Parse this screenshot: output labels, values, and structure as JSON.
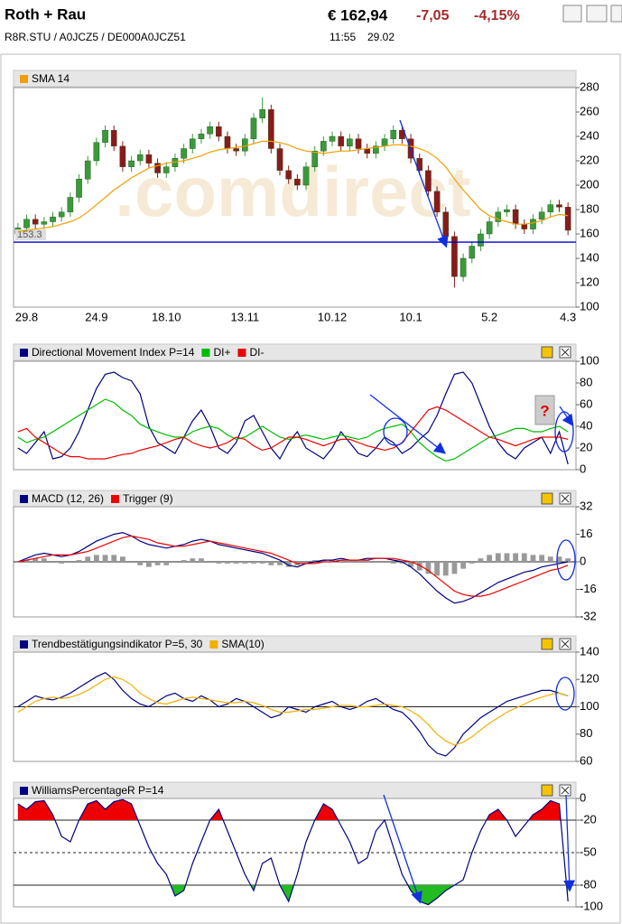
{
  "header": {
    "title": "Roth + Rau",
    "ids": "R8R.STU / A0JCZ5 / DE000A0JCZ51",
    "price": "€ 162,94",
    "change": "-7,05",
    "change_pct": "-4,15%",
    "time": "11:55",
    "date": "29.02"
  },
  "chart_data": [
    {
      "type": "candlestick",
      "watermark": ".comdirect",
      "categories": [
        null,
        "29.8",
        null,
        null,
        null,
        null,
        null,
        null,
        null,
        "24.9",
        null,
        null,
        null,
        null,
        null,
        null,
        null,
        "18.10",
        null,
        null,
        null,
        null,
        null,
        null,
        null,
        null,
        "13.11",
        null,
        null,
        null,
        null,
        null,
        null,
        null,
        null,
        null,
        "10.12",
        null,
        null,
        null,
        null,
        null,
        null,
        null,
        null,
        "10.1",
        null,
        null,
        null,
        null,
        null,
        null,
        null,
        null,
        "5.2",
        null,
        null,
        null,
        null,
        null,
        null,
        null,
        null,
        "4.3"
      ],
      "open": [
        160,
        165,
        172,
        168,
        170,
        174,
        178,
        190,
        205,
        220,
        235,
        245,
        232,
        215,
        220,
        225,
        218,
        210,
        215,
        222,
        230,
        238,
        242,
        248,
        240,
        230,
        228,
        238,
        255,
        262,
        230,
        212,
        205,
        200,
        215,
        228,
        236,
        240,
        232,
        238,
        230,
        226,
        232,
        238,
        245,
        238,
        222,
        212,
        195,
        178,
        158,
        125,
        140,
        150,
        160,
        170,
        178,
        180,
        168,
        164,
        172,
        178,
        184,
        182
      ],
      "high": [
        169,
        176,
        176,
        174,
        178,
        182,
        194,
        209,
        224,
        239,
        249,
        249,
        236,
        224,
        229,
        229,
        222,
        219,
        226,
        234,
        242,
        246,
        252,
        252,
        244,
        234,
        242,
        259,
        272,
        266,
        234,
        216,
        209,
        219,
        232,
        240,
        244,
        244,
        242,
        242,
        234,
        236,
        242,
        249,
        249,
        242,
        226,
        216,
        199,
        182,
        162,
        144,
        154,
        164,
        174,
        182,
        184,
        184,
        172,
        176,
        182,
        188,
        188,
        186
      ],
      "low": [
        156,
        161,
        164,
        164,
        166,
        170,
        174,
        186,
        201,
        216,
        231,
        228,
        211,
        211,
        216,
        214,
        206,
        206,
        211,
        218,
        226,
        234,
        238,
        236,
        226,
        224,
        224,
        234,
        251,
        226,
        208,
        201,
        196,
        196,
        211,
        224,
        232,
        228,
        228,
        226,
        222,
        222,
        228,
        234,
        234,
        218,
        208,
        191,
        174,
        154,
        116,
        121,
        136,
        146,
        156,
        166,
        174,
        164,
        160,
        160,
        168,
        174,
        178,
        159
      ],
      "close": [
        165,
        172,
        168,
        170,
        174,
        178,
        190,
        205,
        220,
        235,
        245,
        232,
        215,
        220,
        225,
        218,
        210,
        215,
        222,
        230,
        238,
        242,
        248,
        240,
        230,
        228,
        238,
        255,
        262,
        230,
        212,
        205,
        200,
        215,
        228,
        236,
        240,
        232,
        238,
        230,
        226,
        232,
        238,
        245,
        238,
        222,
        212,
        195,
        178,
        158,
        125,
        140,
        150,
        160,
        170,
        178,
        180,
        168,
        164,
        172,
        178,
        184,
        182,
        163
      ],
      "up_color": "#3a9a3a",
      "down_color": "#8b1a1a",
      "series": [
        {
          "name": "SMA 14",
          "color": "#f0a000",
          "values": [
            162,
            163,
            164,
            165,
            166,
            168,
            170,
            173,
            178,
            184,
            190,
            196,
            201,
            206,
            210,
            214,
            216,
            218,
            219,
            220,
            222,
            224,
            227,
            229,
            230,
            231,
            232,
            234,
            236,
            236,
            235,
            233,
            230,
            228,
            227,
            226,
            227,
            228,
            228,
            229,
            230,
            231,
            232,
            233,
            233,
            232,
            230,
            227,
            222,
            215,
            205,
            196,
            188,
            180,
            175,
            172,
            170,
            168,
            168,
            169,
            171,
            174,
            176,
            175
          ]
        }
      ],
      "reference_line": {
        "value": 153.3,
        "label": "153.3",
        "color": "#0000cc"
      },
      "ylim": [
        100,
        280
      ],
      "yticks": [
        100,
        120,
        140,
        160,
        180,
        200,
        220,
        240,
        260,
        280
      ]
    },
    {
      "type": "line",
      "annotation": "?",
      "series": [
        {
          "name": "Directional Movement Index P=14",
          "color": "#000080",
          "values": [
            20,
            15,
            25,
            35,
            10,
            12,
            20,
            35,
            55,
            75,
            88,
            90,
            85,
            82,
            70,
            40,
            25,
            20,
            15,
            30,
            45,
            55,
            40,
            20,
            15,
            25,
            45,
            50,
            35,
            20,
            10,
            25,
            35,
            20,
            15,
            10,
            20,
            35,
            25,
            15,
            12,
            20,
            30,
            25,
            15,
            20,
            28,
            35,
            50,
            70,
            88,
            90,
            80,
            60,
            40,
            25,
            15,
            10,
            20,
            25,
            30,
            15,
            35,
            5
          ]
        },
        {
          "name": "DI+",
          "color": "#00bb00",
          "values": [
            30,
            25,
            28,
            30,
            35,
            40,
            45,
            50,
            55,
            60,
            65,
            62,
            55,
            50,
            42,
            38,
            35,
            32,
            30,
            30,
            35,
            38,
            40,
            38,
            32,
            28,
            30,
            35,
            40,
            35,
            30,
            28,
            30,
            32,
            30,
            28,
            30,
            32,
            30,
            28,
            30,
            35,
            38,
            40,
            42,
            35,
            25,
            18,
            12,
            8,
            10,
            15,
            20,
            25,
            30,
            32,
            35,
            38,
            38,
            35,
            35,
            38,
            40,
            35
          ]
        },
        {
          "name": "DI-",
          "color": "#ee0000",
          "values": [
            35,
            38,
            30,
            25,
            20,
            15,
            12,
            12,
            10,
            10,
            10,
            12,
            14,
            15,
            18,
            20,
            22,
            25,
            28,
            30,
            25,
            22,
            20,
            22,
            25,
            30,
            28,
            22,
            18,
            20,
            25,
            30,
            30,
            28,
            25,
            22,
            25,
            28,
            28,
            25,
            22,
            20,
            18,
            20,
            25,
            35,
            45,
            55,
            58,
            55,
            50,
            45,
            40,
            35,
            30,
            28,
            25,
            22,
            25,
            28,
            30,
            30,
            30,
            28
          ]
        }
      ],
      "ylim": [
        0,
        100
      ],
      "yticks": [
        0,
        20,
        40,
        60,
        80,
        100
      ]
    },
    {
      "type": "line",
      "series": [
        {
          "name": "MACD (12, 26)",
          "color": "#000080",
          "values": [
            0,
            2,
            4,
            5,
            4,
            3,
            4,
            6,
            9,
            12,
            14,
            16,
            17,
            15,
            12,
            10,
            9,
            8,
            9,
            10,
            12,
            13,
            12,
            10,
            9,
            8,
            7,
            6,
            5,
            3,
            1,
            -2,
            -3,
            -1,
            0,
            1,
            1,
            2,
            1,
            1,
            2,
            2,
            2,
            1,
            0,
            -3,
            -7,
            -12,
            -17,
            -21,
            -24,
            -23,
            -21,
            -18,
            -15,
            -12,
            -10,
            -8,
            -6,
            -5,
            -3,
            -2,
            -1,
            0
          ]
        },
        {
          "name": "Trigger (9)",
          "color": "#ee0000",
          "values": [
            0,
            1,
            2,
            3,
            4,
            4,
            4,
            5,
            6,
            8,
            10,
            12,
            14,
            15,
            14,
            13,
            11,
            10,
            9,
            9,
            10,
            11,
            12,
            11,
            10,
            9,
            8,
            7,
            6,
            5,
            3,
            1,
            -1,
            -1,
            -1,
            0,
            0,
            1,
            1,
            1,
            1,
            2,
            2,
            2,
            1,
            0,
            -2,
            -5,
            -9,
            -13,
            -17,
            -19,
            -20,
            -20,
            -19,
            -17,
            -15,
            -13,
            -11,
            -9,
            -7,
            -5,
            -4,
            -2
          ]
        }
      ],
      "histogram": {
        "color": "#999999",
        "values": [
          0,
          1,
          2,
          2,
          0,
          -1,
          0,
          1,
          3,
          4,
          4,
          4,
          3,
          0,
          -2,
          -3,
          -2,
          -2,
          0,
          1,
          2,
          2,
          0,
          -1,
          -1,
          -1,
          -1,
          -1,
          -1,
          -2,
          -2,
          -3,
          -2,
          0,
          1,
          1,
          1,
          1,
          0,
          0,
          1,
          0,
          0,
          -1,
          -1,
          -3,
          -5,
          -7,
          -8,
          -8,
          -7,
          -4,
          -1,
          2,
          4,
          5,
          5,
          5,
          5,
          4,
          4,
          3,
          3,
          2
        ]
      },
      "hlines": [
        {
          "value": 0,
          "style": "solid"
        }
      ],
      "ylim": [
        -32,
        32
      ],
      "yticks": [
        -32,
        -16,
        0,
        16,
        32
      ]
    },
    {
      "type": "line",
      "series": [
        {
          "name": "Trendbestätigungsindikator P=5, 30",
          "color": "#000080",
          "values": [
            100,
            104,
            108,
            106,
            105,
            107,
            110,
            114,
            118,
            122,
            125,
            120,
            112,
            106,
            102,
            100,
            104,
            108,
            110,
            106,
            104,
            108,
            105,
            100,
            102,
            106,
            104,
            100,
            96,
            92,
            94,
            100,
            98,
            96,
            100,
            102,
            104,
            100,
            98,
            100,
            104,
            106,
            102,
            98,
            96,
            90,
            82,
            72,
            66,
            64,
            70,
            80,
            86,
            92,
            96,
            100,
            104,
            106,
            108,
            110,
            112,
            112,
            110,
            108
          ]
        },
        {
          "name": "SMA(10)",
          "color": "#f0b000",
          "values": [
            96,
            100,
            104,
            106,
            107,
            106,
            107,
            109,
            112,
            116,
            120,
            122,
            120,
            116,
            110,
            106,
            103,
            102,
            104,
            106,
            107,
            106,
            105,
            104,
            103,
            103,
            104,
            103,
            101,
            98,
            96,
            96,
            97,
            98,
            98,
            99,
            100,
            101,
            101,
            100,
            100,
            101,
            102,
            101,
            100,
            97,
            93,
            87,
            80,
            75,
            72,
            74,
            78,
            83,
            88,
            92,
            96,
            99,
            102,
            105,
            107,
            109,
            110,
            108
          ]
        }
      ],
      "hlines": [
        {
          "value": 100,
          "style": "solid"
        }
      ],
      "ylim": [
        60,
        140
      ],
      "yticks": [
        60,
        80,
        100,
        120,
        140
      ]
    },
    {
      "type": "line",
      "series": [
        {
          "name": "WilliamsPercentageR P=14",
          "color": "#000080",
          "values": [
            -5,
            -10,
            -3,
            -2,
            -15,
            -35,
            -40,
            -20,
            -5,
            -2,
            -10,
            -3,
            -1,
            -5,
            -25,
            -45,
            -60,
            -70,
            -90,
            -85,
            -60,
            -40,
            -20,
            -10,
            -30,
            -50,
            -70,
            -85,
            -60,
            -55,
            -80,
            -95,
            -70,
            -40,
            -20,
            -5,
            -10,
            -25,
            -40,
            -60,
            -55,
            -30,
            -20,
            -45,
            -70,
            -85,
            -95,
            -98,
            -92,
            -85,
            -80,
            -75,
            -50,
            -30,
            -15,
            -10,
            -20,
            -35,
            -25,
            -15,
            -10,
            -2,
            -5,
            -95
          ]
        }
      ],
      "hlines": [
        {
          "value": -20,
          "style": "solid"
        },
        {
          "value": -50,
          "style": "dashed"
        },
        {
          "value": -80,
          "style": "solid"
        }
      ],
      "fills": [
        {
          "value": -20,
          "side": "above",
          "color": "#ee0000"
        },
        {
          "value": -80,
          "side": "below",
          "color": "#22bb22"
        }
      ],
      "ylim": [
        -100,
        0
      ],
      "yticks": [
        -100,
        -80,
        -50,
        -20,
        0
      ]
    }
  ]
}
